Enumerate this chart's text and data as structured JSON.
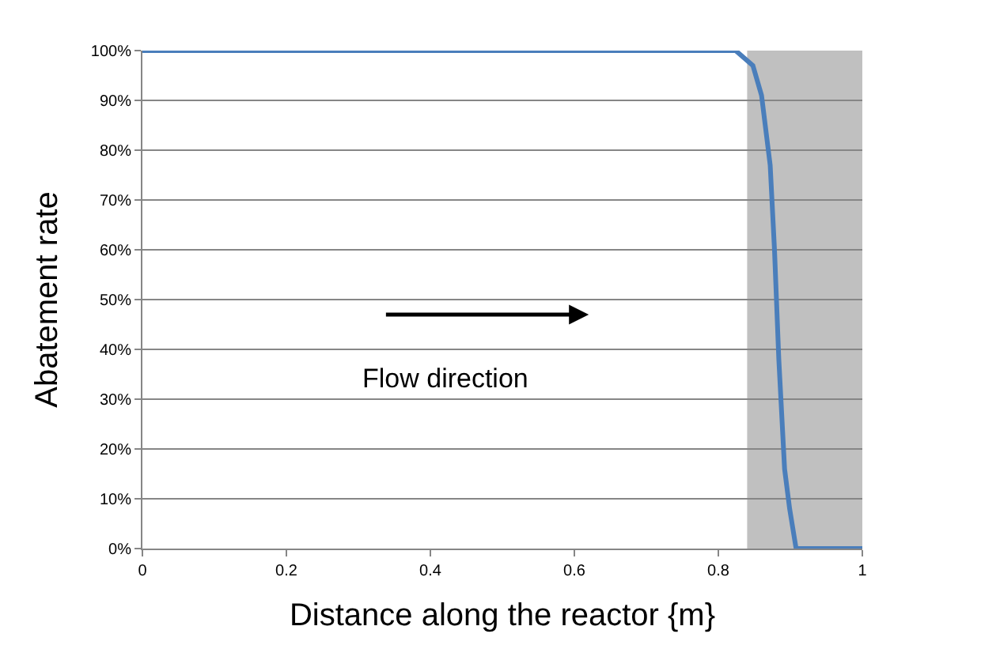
{
  "chart_data": {
    "type": "line",
    "xlabel": "Distance along the reactor {m}",
    "ylabel": "Abatement rate",
    "series": [
      {
        "color": "#4a7ebb",
        "x": [
          0,
          0.824,
          0.848,
          0.86,
          0.872,
          0.878,
          0.884,
          0.892,
          0.899,
          0.908,
          1.0
        ],
        "values": [
          100,
          100,
          97,
          91,
          77,
          60,
          38,
          16,
          8,
          0,
          0
        ]
      }
    ],
    "xlim": [
      0,
      1
    ],
    "xticks": [
      0,
      0.2,
      0.4,
      0.6,
      0.8,
      1
    ],
    "ylim": [
      0,
      100
    ],
    "yticks": [
      {
        "value": 0,
        "label": "0%"
      },
      {
        "value": 10,
        "label": "10%"
      },
      {
        "value": 20,
        "label": "20%"
      },
      {
        "value": 30,
        "label": "30%"
      },
      {
        "value": 40,
        "label": "40%"
      },
      {
        "value": 50,
        "label": "50%"
      },
      {
        "value": 60,
        "label": "60%"
      },
      {
        "value": 70,
        "label": "70%"
      },
      {
        "value": 80,
        "label": "80%"
      },
      {
        "value": 90,
        "label": "90%"
      },
      {
        "value": 100,
        "label": "100%"
      }
    ],
    "bands": [
      {
        "axis": "x",
        "from": 0.84,
        "to": 1,
        "color": "#c0c0c0"
      }
    ],
    "annotations": [
      "Flow direction"
    ],
    "grid": "y",
    "marker": "none",
    "line_style": "solid"
  }
}
